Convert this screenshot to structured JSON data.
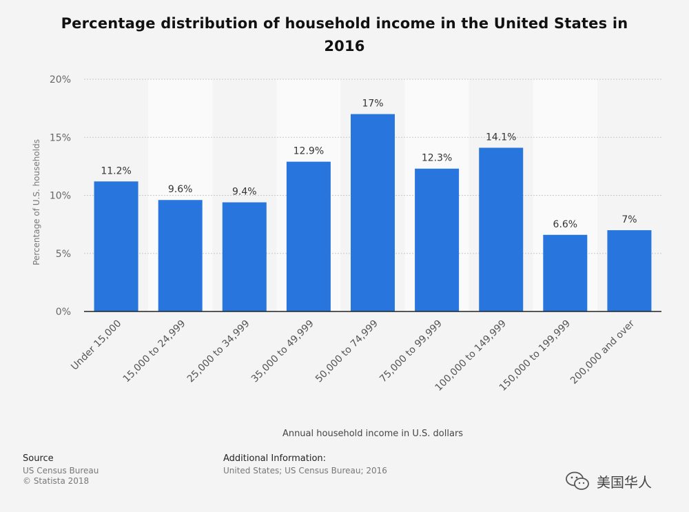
{
  "chart_data": {
    "type": "bar",
    "title": "Percentage distribution of household income in the United States in 2016",
    "categories": [
      "Under 15,000",
      "15,000 to 24,999",
      "25,000 to 34,999",
      "35,000 to 49,999",
      "50,000 to 74,999",
      "75,000 to 99,999",
      "100,000 to 149,999",
      "150,000 to 199,999",
      "200,000 and over"
    ],
    "values": [
      11.2,
      9.6,
      9.4,
      12.9,
      17,
      12.3,
      14.1,
      6.6,
      7
    ],
    "value_labels": [
      "11.2%",
      "9.6%",
      "9.4%",
      "12.9%",
      "17%",
      "12.3%",
      "14.1%",
      "6.6%",
      "7%"
    ],
    "xlabel": "Annual household income in U.S. dollars",
    "ylabel": "Percentage of U.S. households",
    "ylim": [
      0,
      20
    ],
    "yticks": [
      0,
      5,
      10,
      15,
      20
    ],
    "ytick_labels": [
      "0%",
      "5%",
      "10%",
      "15%",
      "20%"
    ],
    "grid": true,
    "bar_color": "#2876dd"
  },
  "footer": {
    "source_heading": "Source",
    "source_lines": [
      "US Census Bureau",
      "© Statista 2018"
    ],
    "additional_heading": "Additional Information:",
    "additional_text": "United States; US Census Bureau; 2016"
  },
  "watermark": {
    "icon": "wechat-icon",
    "text": "美国华人"
  }
}
